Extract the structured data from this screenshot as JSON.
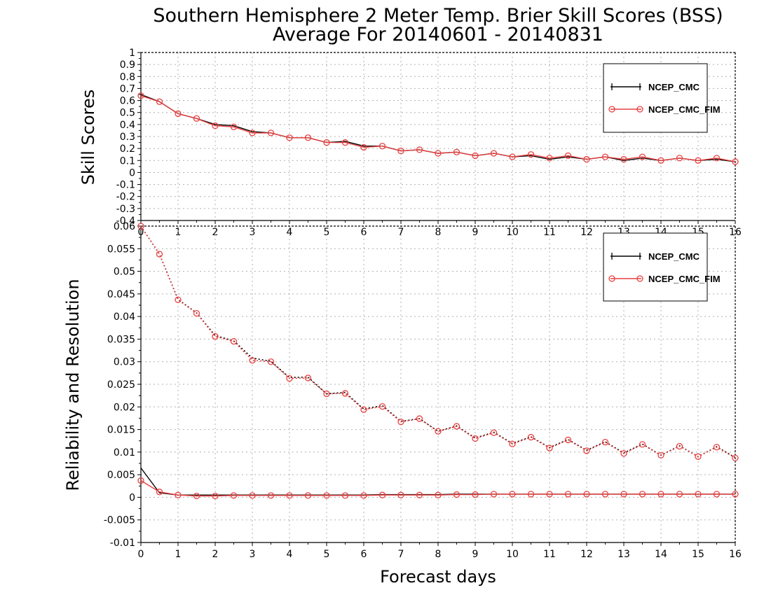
{
  "title": {
    "line1": "Southern Hemisphere 2 Meter Temp. Brier Skill Scores (BSS)",
    "line2": "Average For 20140601 - 20140831"
  },
  "xlabel": "Forecast days",
  "colors": {
    "ncep_cmc": "#000000",
    "ncep_cmc_fim": "#e84040"
  },
  "chart_data": [
    {
      "type": "line",
      "ylabel": "Skill Scores",
      "xlim": [
        0,
        16
      ],
      "ylim": [
        -0.4,
        1
      ],
      "xticks": [
        "0",
        "1",
        "2",
        "3",
        "4",
        "5",
        "6",
        "7",
        "8",
        "9",
        "10",
        "11",
        "12",
        "13",
        "14",
        "15",
        "16"
      ],
      "yticks": [
        "-0.4",
        "-0.3",
        "-0.2",
        "-0.1",
        "0",
        "0.1",
        "0.2",
        "0.3",
        "0.4",
        "0.5",
        "0.6",
        "0.7",
        "0.8",
        "0.9",
        "1"
      ],
      "grid": true,
      "legend_position": "top-right",
      "x": [
        0,
        0.5,
        1,
        1.5,
        2,
        2.5,
        3,
        3.5,
        4,
        4.5,
        5,
        5.5,
        6,
        6.5,
        7,
        7.5,
        8,
        8.5,
        9,
        9.5,
        10,
        10.5,
        11,
        11.5,
        12,
        12.5,
        13,
        13.5,
        14,
        14.5,
        15,
        15.5,
        16
      ],
      "series": [
        {
          "name": "NCEP_CMC",
          "marker": "+",
          "values": [
            0.65,
            0.59,
            0.49,
            0.45,
            0.4,
            0.39,
            0.34,
            0.33,
            0.29,
            0.29,
            0.25,
            0.26,
            0.22,
            0.22,
            0.18,
            0.19,
            0.16,
            0.17,
            0.14,
            0.16,
            0.13,
            0.14,
            0.11,
            0.13,
            0.11,
            0.13,
            0.1,
            0.12,
            0.1,
            0.12,
            0.1,
            0.11,
            0.09
          ]
        },
        {
          "name": "NCEP_CMC_FIM",
          "marker": "o",
          "values": [
            0.64,
            0.59,
            0.49,
            0.45,
            0.39,
            0.38,
            0.33,
            0.33,
            0.29,
            0.29,
            0.25,
            0.25,
            0.21,
            0.22,
            0.18,
            0.19,
            0.16,
            0.17,
            0.14,
            0.16,
            0.13,
            0.15,
            0.12,
            0.14,
            0.11,
            0.13,
            0.11,
            0.13,
            0.1,
            0.12,
            0.1,
            0.12,
            0.09
          ]
        }
      ]
    },
    {
      "type": "line",
      "ylabel": "Reliability and Resolution",
      "xlim": [
        0,
        16
      ],
      "ylim": [
        -0.01,
        0.06
      ],
      "xticks": [
        "0",
        "1",
        "2",
        "3",
        "4",
        "5",
        "6",
        "7",
        "8",
        "9",
        "10",
        "11",
        "12",
        "13",
        "14",
        "15",
        "16"
      ],
      "yticks": [
        "-0.01",
        "-0.005",
        "0",
        "0.005",
        "0.01",
        "0.015",
        "0.02",
        "0.025",
        "0.03",
        "0.035",
        "0.04",
        "0.045",
        "0.05",
        "0.055",
        "0.06"
      ],
      "grid": true,
      "legend_position": "top-right",
      "x": [
        0,
        0.5,
        1,
        1.5,
        2,
        2.5,
        3,
        3.5,
        4,
        4.5,
        5,
        5.5,
        6,
        6.5,
        7,
        7.5,
        8,
        8.5,
        9,
        9.5,
        10,
        10.5,
        11,
        11.5,
        12,
        12.5,
        13,
        13.5,
        14,
        14.5,
        15,
        15.5,
        16
      ],
      "series": [
        {
          "name": "NCEP_CMC",
          "component": "reliability",
          "marker": "+",
          "values": [
            0.0065,
            0.001,
            0.0005,
            0.0005,
            0.0005,
            0.0005,
            0.0005,
            0.0005,
            0.0005,
            0.0005,
            0.0005,
            0.0005,
            0.0005,
            0.0006,
            0.0006,
            0.0006,
            0.0006,
            0.0007,
            0.0007,
            0.0007,
            0.0007,
            0.0007,
            0.0007,
            0.0007,
            0.0007,
            0.0007,
            0.0007,
            0.0007,
            0.0007,
            0.0007,
            0.0007,
            0.0007,
            0.0007
          ]
        },
        {
          "name": "NCEP_CMC_FIM",
          "component": "reliability",
          "marker": "o",
          "values": [
            0.0037,
            0.0012,
            0.0005,
            0.0003,
            0.0003,
            0.0004,
            0.0004,
            0.0004,
            0.0004,
            0.0004,
            0.0004,
            0.0004,
            0.0004,
            0.0005,
            0.0005,
            0.0005,
            0.0005,
            0.0006,
            0.0006,
            0.0007,
            0.0007,
            0.0007,
            0.0007,
            0.0007,
            0.0007,
            0.0007,
            0.0007,
            0.0007,
            0.0007,
            0.0007,
            0.0007,
            0.0007,
            0.0007
          ]
        },
        {
          "name": "NCEP_CMC",
          "component": "resolution",
          "marker": "+",
          "values": [
            0.062,
            0.0538,
            0.0438,
            0.0408,
            0.0358,
            0.0346,
            0.0308,
            0.0301,
            0.0265,
            0.0266,
            0.0229,
            0.0232,
            0.0195,
            0.0203,
            0.0168,
            0.0174,
            0.0146,
            0.0158,
            0.0131,
            0.0144,
            0.0119,
            0.0134,
            0.011,
            0.0128,
            0.0104,
            0.0123,
            0.0098,
            0.0118,
            0.0093,
            0.0114,
            0.009,
            0.0112,
            0.0088
          ]
        },
        {
          "name": "NCEP_CMC_FIM",
          "component": "resolution",
          "marker": "o",
          "values": [
            0.062,
            0.0538,
            0.0437,
            0.0407,
            0.0356,
            0.0345,
            0.0303,
            0.03,
            0.0263,
            0.0264,
            0.0229,
            0.023,
            0.0194,
            0.0201,
            0.0167,
            0.0174,
            0.0146,
            0.0157,
            0.013,
            0.0143,
            0.0118,
            0.0133,
            0.0109,
            0.0127,
            0.0103,
            0.0122,
            0.0097,
            0.0117,
            0.0093,
            0.0113,
            0.009,
            0.0111,
            0.0087
          ]
        }
      ]
    }
  ]
}
